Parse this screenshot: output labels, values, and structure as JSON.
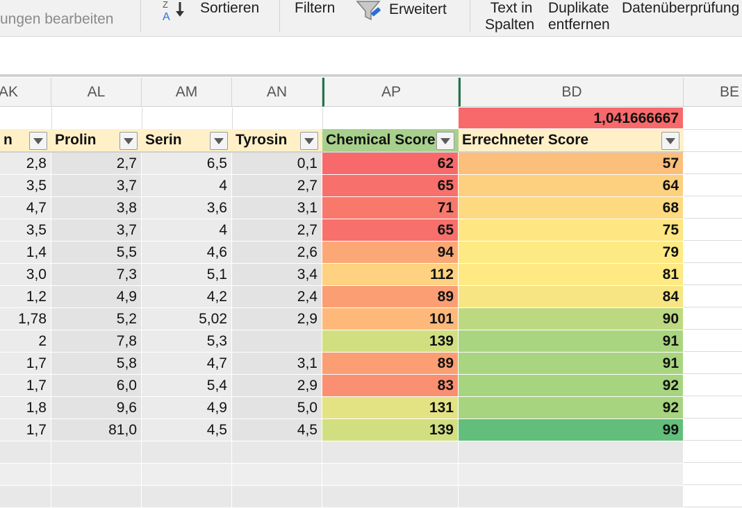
{
  "ribbon": {
    "edit_links_label": "ungen bearbeiten",
    "sort_label": "Sortieren",
    "sort_icon_letters": "Z\nA",
    "filter_label": "Filtern",
    "advanced_label": "Erweitert",
    "text_to_columns_line1": "Text in",
    "text_to_columns_line2": "Spalten",
    "remove_duplicates_line1": "Duplikate",
    "remove_duplicates_line2": "entfernen",
    "data_validation_label": "Datenüberprüfung"
  },
  "columns": [
    "AK",
    "AL",
    "AM",
    "AN",
    "AP",
    "BD",
    "BE"
  ],
  "top_value": "1,041666667",
  "headers": {
    "ak": "n",
    "al": "Prolin",
    "am": "Serin",
    "an": "Tyrosin",
    "ap": "Chemical Score",
    "bd": "Errechneter Score"
  },
  "rows": [
    {
      "ak": "2,8",
      "al": "2,7",
      "am": "6,5",
      "an": "0,1",
      "ap": "62",
      "bd": "57"
    },
    {
      "ak": "3,5",
      "al": "3,7",
      "am": "4",
      "an": "2,7",
      "ap": "65",
      "bd": "64"
    },
    {
      "ak": "4,7",
      "al": "3,8",
      "am": "3,6",
      "an": "3,1",
      "ap": "71",
      "bd": "68"
    },
    {
      "ak": "3,5",
      "al": "3,7",
      "am": "4",
      "an": "2,7",
      "ap": "65",
      "bd": "75"
    },
    {
      "ak": "1,4",
      "al": "5,5",
      "am": "4,6",
      "an": "2,6",
      "ap": "94",
      "bd": "79"
    },
    {
      "ak": "3,0",
      "al": "7,3",
      "am": "5,1",
      "an": "3,4",
      "ap": "112",
      "bd": "81"
    },
    {
      "ak": "1,2",
      "al": "4,9",
      "am": "4,2",
      "an": "2,4",
      "ap": "89",
      "bd": "84"
    },
    {
      "ak": "1,78",
      "al": "5,2",
      "am": "5,02",
      "an": "2,9",
      "ap": "101",
      "bd": "90"
    },
    {
      "ak": "2",
      "al": "7,8",
      "am": "5,3",
      "an": "",
      "ap": "139",
      "bd": "91"
    },
    {
      "ak": "1,7",
      "al": "5,8",
      "am": "4,7",
      "an": "3,1",
      "ap": "89",
      "bd": "91"
    },
    {
      "ak": "1,7",
      "al": "6,0",
      "am": "5,4",
      "an": "2,9",
      "ap": "83",
      "bd": "92"
    },
    {
      "ak": "1,8",
      "al": "9,6",
      "am": "4,9",
      "an": "5,0",
      "ap": "131",
      "bd": "92"
    },
    {
      "ak": "1,7",
      "al": "81,0",
      "am": "4,5",
      "an": "4,5",
      "ap": "139",
      "bd": "99"
    }
  ],
  "colors": {
    "header_fill": "#fff0c8",
    "ap_header_fill": "#a8d08d",
    "top_value_fill": "#f8696b",
    "data_gray_a": "#e3e3e3",
    "data_gray_b": "#ebebeb",
    "ap_fills": [
      "#f8696b",
      "#f8706b",
      "#f8786c",
      "#f8706b",
      "#fba876",
      "#fed280",
      "#fb9e74",
      "#feb97a",
      "#d2df81",
      "#fb9e74",
      "#fa8f71",
      "#e3e383",
      "#d2df81"
    ],
    "bd_fills": [
      "#fcbe7b",
      "#fdd07f",
      "#fdd980",
      "#fee683",
      "#feea83",
      "#fee983",
      "#f7e583",
      "#bcd981",
      "#aad580",
      "#aad580",
      "#a7d47f",
      "#a7d47f",
      "#63be7b"
    ]
  }
}
